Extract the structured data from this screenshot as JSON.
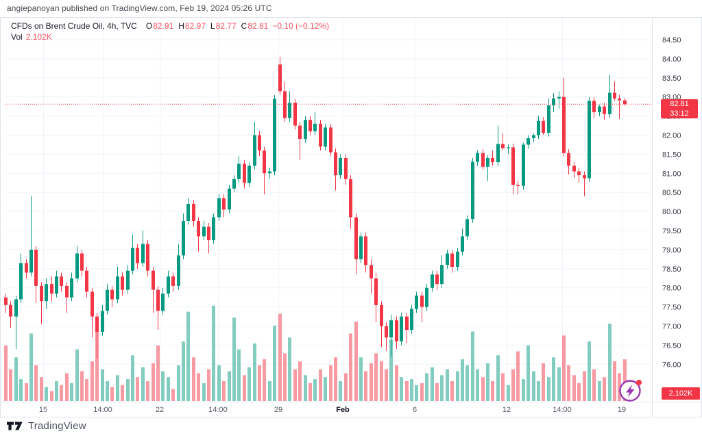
{
  "published_caption": "angiepanoyan published on TradingView.com, Feb 19, 2024 05:26 UTC",
  "legend": {
    "title": "CFDs on Brent Crude Oil, 4h, TVC",
    "o_label": "O",
    "o": "82.91",
    "h_label": "H",
    "h": "82.97",
    "l_label": "L",
    "l": "82.77",
    "c_label": "C",
    "c": "82.81",
    "change": "−0.10 (−0.12%)",
    "vol_label": "Vol",
    "vol_value": "2.102K"
  },
  "price_axis": {
    "last_price_badge": {
      "price": "82.81",
      "countdown": "33:12"
    },
    "volume_badge": "2.102K"
  },
  "footer": {
    "brand": "TradingView"
  },
  "colors": {
    "up": "#089981",
    "down": "#f23645",
    "volume_up": "rgba(8,153,129,0.5)",
    "volume_down": "rgba(242,54,69,0.5)",
    "grid": "#f0f3fa",
    "axis_border": "#e0e3eb",
    "axis_text": "#363a45",
    "time_text": "#555b66",
    "time_text_bold": "#131722",
    "badge_bg": "#f23645",
    "last_price_line": "#f23645",
    "boost_purple": "#9c36b5",
    "alert_dot": "#f23645",
    "logo_ink": "#131722"
  },
  "chart_data": {
    "type": "candlestick",
    "title": "CFDs on Brent Crude Oil, 4h, TVC",
    "interval": "4h",
    "exchange": "TVC",
    "last_close": 82.81,
    "change": -0.1,
    "change_pct": -0.12,
    "countdown": "33:12",
    "current_volume": "2.102K",
    "volume_unit": "K",
    "grid": true,
    "y_axis": {
      "min": 76.0,
      "max": 84.5,
      "step": 0.5
    },
    "y_tick_labels": [
      "84.50",
      "84.00",
      "83.50",
      "83.00",
      "82.50",
      "82.00",
      "81.50",
      "81.00",
      "80.50",
      "80.00",
      "79.50",
      "79.00",
      "78.50",
      "78.00",
      "77.50",
      "77.00",
      "76.50",
      "76.00"
    ],
    "x_ticks": [
      {
        "label": "15",
        "x": 63
      },
      {
        "label": "14:00",
        "x": 150
      },
      {
        "label": "22",
        "x": 233
      },
      {
        "label": "14:00",
        "x": 318
      },
      {
        "label": "29",
        "x": 406
      },
      {
        "label": "Feb",
        "x": 500,
        "bold": true
      },
      {
        "label": "6",
        "x": 605
      },
      {
        "label": "12",
        "x": 739
      },
      {
        "label": "14:00",
        "x": 820
      },
      {
        "label": "19",
        "x": 907
      }
    ],
    "candles_format": [
      "open",
      "high",
      "low",
      "close",
      "volume_K"
    ],
    "candles": [
      [
        77.75,
        77.85,
        77.35,
        77.55,
        2.8
      ],
      [
        77.55,
        77.65,
        76.95,
        77.25,
        1.6
      ],
      [
        77.25,
        77.8,
        76.4,
        77.7,
        2.2
      ],
      [
        77.7,
        78.9,
        77.6,
        78.65,
        1.1
      ],
      [
        78.65,
        78.75,
        78.25,
        78.4,
        0.9
      ],
      [
        78.4,
        80.4,
        78.3,
        79.0,
        3.4
      ],
      [
        79.0,
        79.1,
        77.6,
        78.05,
        1.8
      ],
      [
        78.05,
        78.15,
        77.05,
        77.65,
        1.2
      ],
      [
        77.65,
        78.25,
        77.45,
        78.1,
        0.7
      ],
      [
        78.1,
        78.3,
        77.65,
        77.85,
        0.5
      ],
      [
        77.85,
        78.45,
        77.75,
        78.3,
        1.0
      ],
      [
        78.3,
        78.4,
        77.9,
        78.05,
        0.8
      ],
      [
        78.05,
        78.15,
        77.35,
        77.75,
        1.4
      ],
      [
        77.75,
        78.4,
        77.65,
        78.25,
        0.9
      ],
      [
        78.25,
        79.1,
        78.15,
        78.9,
        2.6
      ],
      [
        78.9,
        79.0,
        78.3,
        78.45,
        1.5
      ],
      [
        78.45,
        78.55,
        77.75,
        77.9,
        1.1
      ],
      [
        77.9,
        78.0,
        76.7,
        77.25,
        2.0
      ],
      [
        77.25,
        77.35,
        76.15,
        76.85,
        3.8
      ],
      [
        76.85,
        77.55,
        76.75,
        77.4,
        1.6
      ],
      [
        77.4,
        78.1,
        77.3,
        77.95,
        1.0
      ],
      [
        77.95,
        78.05,
        77.5,
        77.7,
        0.7
      ],
      [
        77.7,
        78.55,
        77.6,
        78.3,
        1.3
      ],
      [
        78.3,
        78.4,
        77.8,
        77.95,
        0.8
      ],
      [
        77.95,
        78.6,
        77.85,
        78.45,
        1.1
      ],
      [
        78.45,
        79.4,
        78.35,
        79.05,
        2.3
      ],
      [
        79.05,
        79.15,
        78.5,
        78.65,
        1.2
      ],
      [
        78.65,
        79.5,
        78.55,
        79.15,
        1.7
      ],
      [
        79.15,
        79.25,
        78.3,
        78.45,
        1.0
      ],
      [
        78.45,
        78.55,
        77.35,
        77.95,
        1.9
      ],
      [
        77.95,
        78.05,
        76.9,
        77.4,
        2.8
      ],
      [
        77.4,
        78.0,
        77.3,
        77.85,
        1.5
      ],
      [
        77.85,
        78.45,
        77.75,
        78.3,
        1.2
      ],
      [
        78.3,
        78.4,
        77.9,
        78.05,
        0.6
      ],
      [
        78.05,
        79.15,
        77.95,
        78.85,
        1.8
      ],
      [
        78.85,
        79.95,
        78.75,
        79.75,
        3.0
      ],
      [
        79.75,
        80.35,
        79.65,
        80.2,
        4.5
      ],
      [
        80.2,
        80.3,
        79.6,
        79.75,
        2.2
      ],
      [
        79.75,
        79.85,
        78.95,
        79.35,
        1.4
      ],
      [
        79.35,
        79.75,
        79.25,
        79.6,
        0.9
      ],
      [
        79.6,
        79.7,
        78.9,
        79.25,
        1.6
      ],
      [
        79.25,
        79.95,
        79.15,
        79.85,
        4.8
      ],
      [
        79.85,
        80.45,
        79.75,
        80.35,
        1.8
      ],
      [
        80.35,
        80.45,
        79.85,
        80.05,
        1.0
      ],
      [
        80.05,
        80.7,
        79.95,
        80.6,
        1.5
      ],
      [
        80.6,
        80.95,
        80.5,
        80.85,
        4.2
      ],
      [
        80.85,
        81.45,
        80.75,
        81.25,
        2.6
      ],
      [
        81.25,
        81.35,
        80.6,
        80.75,
        1.3
      ],
      [
        80.75,
        81.3,
        80.65,
        81.2,
        1.7
      ],
      [
        81.2,
        82.35,
        81.1,
        82.0,
        2.9
      ],
      [
        82.0,
        82.1,
        81.45,
        81.6,
        1.8
      ],
      [
        81.6,
        81.7,
        80.45,
        81.0,
        2.1
      ],
      [
        81.0,
        81.15,
        80.85,
        81.05,
        1.0
      ],
      [
        81.05,
        83.05,
        80.95,
        82.95,
        3.8
      ],
      [
        83.85,
        84.05,
        83.05,
        83.15,
        4.4
      ],
      [
        83.15,
        83.4,
        82.35,
        82.45,
        2.4
      ],
      [
        82.45,
        83.15,
        82.35,
        82.85,
        3.2
      ],
      [
        82.85,
        82.95,
        82.15,
        82.25,
        1.6
      ],
      [
        82.25,
        82.35,
        81.35,
        81.9,
        2.0
      ],
      [
        81.9,
        82.5,
        81.8,
        82.4,
        1.3
      ],
      [
        82.4,
        82.5,
        82.0,
        82.1,
        0.9
      ],
      [
        82.1,
        82.6,
        82.0,
        82.3,
        1.1
      ],
      [
        82.3,
        82.4,
        81.6,
        81.7,
        1.6
      ],
      [
        81.7,
        82.3,
        81.6,
        82.2,
        1.2
      ],
      [
        82.2,
        82.3,
        81.45,
        81.55,
        1.8
      ],
      [
        81.55,
        81.65,
        80.55,
        80.95,
        2.2
      ],
      [
        80.95,
        81.5,
        80.85,
        81.4,
        1.0
      ],
      [
        81.4,
        81.5,
        80.7,
        80.85,
        1.4
      ],
      [
        80.85,
        80.95,
        79.55,
        79.85,
        3.4
      ],
      [
        79.85,
        79.95,
        78.35,
        78.75,
        4.0
      ],
      [
        78.75,
        79.45,
        78.65,
        79.35,
        2.2
      ],
      [
        79.35,
        79.45,
        78.4,
        78.6,
        1.5
      ],
      [
        78.6,
        78.75,
        77.85,
        78.25,
        1.9
      ],
      [
        78.25,
        78.4,
        77.1,
        77.55,
        2.4
      ],
      [
        77.55,
        77.65,
        76.45,
        77.0,
        2.0
      ],
      [
        77.0,
        77.1,
        76.35,
        76.7,
        1.6
      ],
      [
        76.7,
        77.3,
        76.2,
        77.15,
        3.1
      ],
      [
        77.15,
        77.25,
        76.4,
        76.6,
        1.8
      ],
      [
        76.6,
        77.35,
        76.5,
        77.25,
        1.2
      ],
      [
        77.25,
        77.35,
        76.55,
        76.9,
        1.0
      ],
      [
        76.9,
        77.55,
        76.8,
        77.45,
        1.1
      ],
      [
        77.45,
        77.9,
        77.35,
        77.8,
        0.8
      ],
      [
        77.8,
        77.9,
        77.1,
        77.5,
        0.9
      ],
      [
        77.5,
        78.1,
        77.4,
        78.0,
        1.4
      ],
      [
        78.0,
        78.45,
        77.9,
        78.35,
        1.7
      ],
      [
        78.35,
        78.45,
        77.95,
        78.1,
        0.9
      ],
      [
        78.1,
        78.85,
        78.0,
        78.6,
        1.3
      ],
      [
        78.6,
        79.0,
        78.5,
        78.9,
        1.6
      ],
      [
        78.9,
        79.0,
        78.4,
        78.55,
        1.0
      ],
      [
        78.55,
        79.05,
        78.45,
        78.95,
        1.5
      ],
      [
        78.95,
        79.55,
        78.85,
        79.35,
        2.1
      ],
      [
        79.35,
        79.9,
        79.25,
        79.8,
        1.8
      ],
      [
        79.8,
        81.4,
        79.7,
        81.3,
        3.5
      ],
      [
        81.3,
        81.6,
        81.2,
        81.53,
        1.6
      ],
      [
        81.53,
        81.63,
        81.1,
        81.17,
        1.2
      ],
      [
        81.17,
        81.47,
        80.8,
        81.4,
        1.9
      ],
      [
        81.4,
        81.6,
        81.2,
        81.29,
        1.0
      ],
      [
        81.29,
        82.25,
        81.19,
        81.77,
        2.3
      ],
      [
        81.77,
        82.05,
        81.6,
        81.66,
        1.4
      ],
      [
        81.66,
        81.76,
        81.5,
        81.68,
        0.8
      ],
      [
        81.68,
        81.78,
        80.45,
        80.7,
        1.6
      ],
      [
        80.7,
        80.8,
        80.45,
        80.67,
        2.5
      ],
      [
        80.67,
        81.8,
        80.57,
        81.75,
        1.1
      ],
      [
        81.75,
        82.0,
        81.65,
        81.92,
        2.8
      ],
      [
        81.92,
        82.05,
        81.82,
        82.0,
        1.5
      ],
      [
        82.0,
        82.51,
        81.9,
        82.37,
        1.0
      ],
      [
        82.37,
        82.47,
        82.0,
        82.06,
        1.9
      ],
      [
        82.06,
        82.96,
        81.96,
        82.78,
        1.2
      ],
      [
        82.78,
        83.1,
        82.6,
        82.96,
        2.2
      ],
      [
        82.96,
        83.15,
        82.7,
        83.0,
        1.7
      ],
      [
        83.0,
        83.5,
        81.45,
        81.53,
        3.3
      ],
      [
        81.53,
        81.63,
        80.97,
        81.2,
        1.8
      ],
      [
        81.2,
        81.3,
        80.88,
        81.05,
        1.3
      ],
      [
        81.05,
        81.15,
        80.75,
        80.95,
        0.9
      ],
      [
        80.95,
        81.05,
        80.4,
        80.87,
        1.5
      ],
      [
        80.87,
        83.0,
        80.77,
        82.9,
        3.0
      ],
      [
        82.9,
        83.0,
        82.45,
        82.6,
        1.6
      ],
      [
        82.6,
        82.8,
        82.5,
        82.75,
        1.0
      ],
      [
        82.75,
        82.85,
        82.4,
        82.55,
        1.2
      ],
      [
        82.55,
        83.59,
        82.45,
        83.11,
        3.9
      ],
      [
        83.11,
        83.41,
        82.9,
        82.96,
        2.0
      ],
      [
        82.96,
        83.06,
        82.42,
        82.91,
        1.4
      ],
      [
        82.91,
        82.97,
        82.77,
        82.81,
        2.102
      ]
    ]
  }
}
